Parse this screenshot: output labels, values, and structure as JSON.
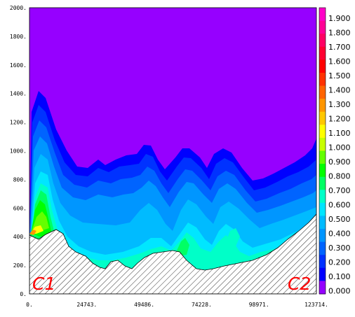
{
  "chart_data": {
    "type": "contour",
    "x_ticks": [
      "0.",
      "24743.",
      "49486.",
      "74228.",
      "98971.",
      "123714."
    ],
    "y_ticks": [
      "0.",
      "200.",
      "400.",
      "600.",
      "800.",
      "1000.",
      "1200.",
      "1400.",
      "1600.",
      "1800.",
      "2000."
    ],
    "x_values": [
      0,
      24743,
      49486,
      74228,
      98971,
      123714
    ],
    "y_values": [
      0,
      200,
      400,
      600,
      800,
      1000,
      1200,
      1400,
      1600,
      1800,
      2000
    ],
    "xlim": [
      0,
      123714
    ],
    "ylim": [
      0,
      2000
    ],
    "colorbar": {
      "labels": [
        "1.900",
        "1.800",
        "1.700",
        "1.600",
        "1.500",
        "1.400",
        "1.300",
        "1.200",
        "1.100",
        "1.000",
        "0.900",
        "0.800",
        "0.700",
        "0.600",
        "0.500",
        "0.400",
        "0.300",
        "0.200",
        "0.100",
        "0.000"
      ],
      "colors": [
        "#ff00c8",
        "#ff0096",
        "#ff0064",
        "#ff0032",
        "#ff0000",
        "#ff3200",
        "#ff6400",
        "#ff9600",
        "#ffc800",
        "#ffff00",
        "#c8ff00",
        "#64ff00",
        "#00ff00",
        "#00ff64",
        "#00ffc8",
        "#00e6ff",
        "#00bbff",
        "#0096ff",
        "#0064ff",
        "#0032ff",
        "#0000ff",
        "#9600ff"
      ]
    },
    "background_color": "#9600ff",
    "terrain_pattern": "hatched",
    "corner_labels": [
      "C1",
      "C2"
    ]
  }
}
